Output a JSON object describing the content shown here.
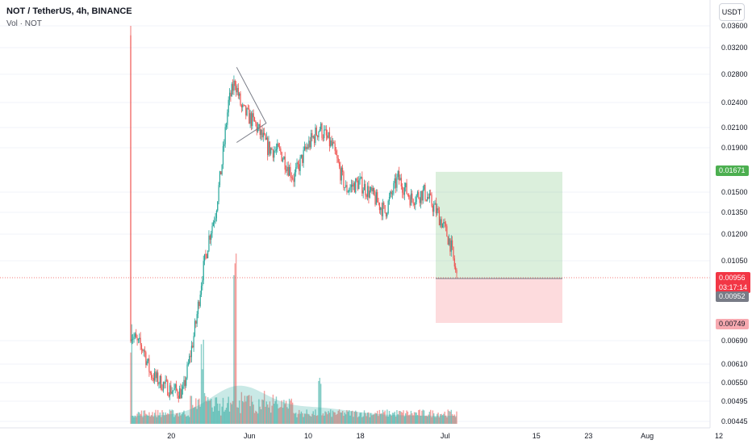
{
  "header": {
    "title": "NOT / TetherUS, 4h, BINANCE",
    "volume_label": "Vol · NOT"
  },
  "unit_button": "USDT",
  "price_axis": {
    "ticks": [
      "0.03600",
      "0.03200",
      "0.02800",
      "0.02400",
      "0.02100",
      "0.01900",
      "0.01500",
      "0.01350",
      "0.01200",
      "0.01050",
      "0.00690",
      "0.00610",
      "0.00550",
      "0.00495",
      "0.00445"
    ]
  },
  "time_axis": {
    "ticks": [
      "20",
      "Jun",
      "10",
      "18",
      "Jul",
      "15",
      "23",
      "Aug",
      "12"
    ]
  },
  "price_tags": {
    "target": "0.01671",
    "current_price": "0.00956",
    "countdown": "03:17:14",
    "entry": "0.00952",
    "stop": "0.00749"
  },
  "colors": {
    "up": "#26a69a",
    "down": "#ef5350",
    "profit_zone": "#4caf50",
    "loss_zone": "#f23645",
    "accent": "#2962ff"
  },
  "chart_data": {
    "type": "candlestick",
    "symbol": "NOT / TetherUS",
    "interval": "4h",
    "exchange": "BINANCE",
    "y_axis_scale": "log",
    "ylim": [
      0.00445,
      0.038
    ],
    "close_anchors": [
      {
        "x": "May 16",
        "close": 0.0072
      },
      {
        "x": "May 17",
        "close": 0.0068
      },
      {
        "x": "May 18",
        "close": 0.0066
      },
      {
        "x": "May 19",
        "close": 0.0058
      },
      {
        "x": "May 20",
        "close": 0.0056
      },
      {
        "x": "May 22",
        "close": 0.0053
      },
      {
        "x": "May 24",
        "close": 0.0052
      },
      {
        "x": "May 26",
        "close": 0.0075
      },
      {
        "x": "May 27",
        "close": 0.0098
      },
      {
        "x": "May 28",
        "close": 0.0118
      },
      {
        "x": "May 29",
        "close": 0.0135
      },
      {
        "x": "May 30",
        "close": 0.0175
      },
      {
        "x": "May 31",
        "close": 0.024
      },
      {
        "x": "Jun 1",
        "close": 0.027
      },
      {
        "x": "Jun 2",
        "close": 0.0232
      },
      {
        "x": "Jun 4",
        "close": 0.0215
      },
      {
        "x": "Jun 6",
        "close": 0.019
      },
      {
        "x": "Jun 8",
        "close": 0.0185
      },
      {
        "x": "Jun 10",
        "close": 0.0162
      },
      {
        "x": "Jun 12",
        "close": 0.019
      },
      {
        "x": "Jun 14",
        "close": 0.021
      },
      {
        "x": "Jun 16",
        "close": 0.019
      },
      {
        "x": "Jun 18",
        "close": 0.0152
      },
      {
        "x": "Jun 20",
        "close": 0.0158
      },
      {
        "x": "Jun 22",
        "close": 0.0148
      },
      {
        "x": "Jun 24",
        "close": 0.0135
      },
      {
        "x": "Jun 26",
        "close": 0.0162
      },
      {
        "x": "Jun 28",
        "close": 0.0145
      },
      {
        "x": "Jun 30",
        "close": 0.015
      },
      {
        "x": "Jul 2",
        "close": 0.0135
      },
      {
        "x": "Jul 3",
        "close": 0.0125
      },
      {
        "x": "Jul 4",
        "close": 0.0115
      },
      {
        "x": "Jul 5",
        "close": 0.0096
      }
    ],
    "spike_high": 0.036,
    "triangle": {
      "apex_high": 0.029,
      "apex_low": 0.0195,
      "end": 0.0215
    },
    "position": {
      "entry": 0.00952,
      "target": 0.01671,
      "stop": 0.00749
    },
    "volume": {
      "label": "Vol · NOT",
      "peaks": [
        {
          "x": "May 16",
          "level": 0.62
        },
        {
          "x": "May 27",
          "level": 0.45
        },
        {
          "x": "Jun 1",
          "level": 1.0
        },
        {
          "x": "Jun 14",
          "level": 0.3
        }
      ]
    }
  }
}
